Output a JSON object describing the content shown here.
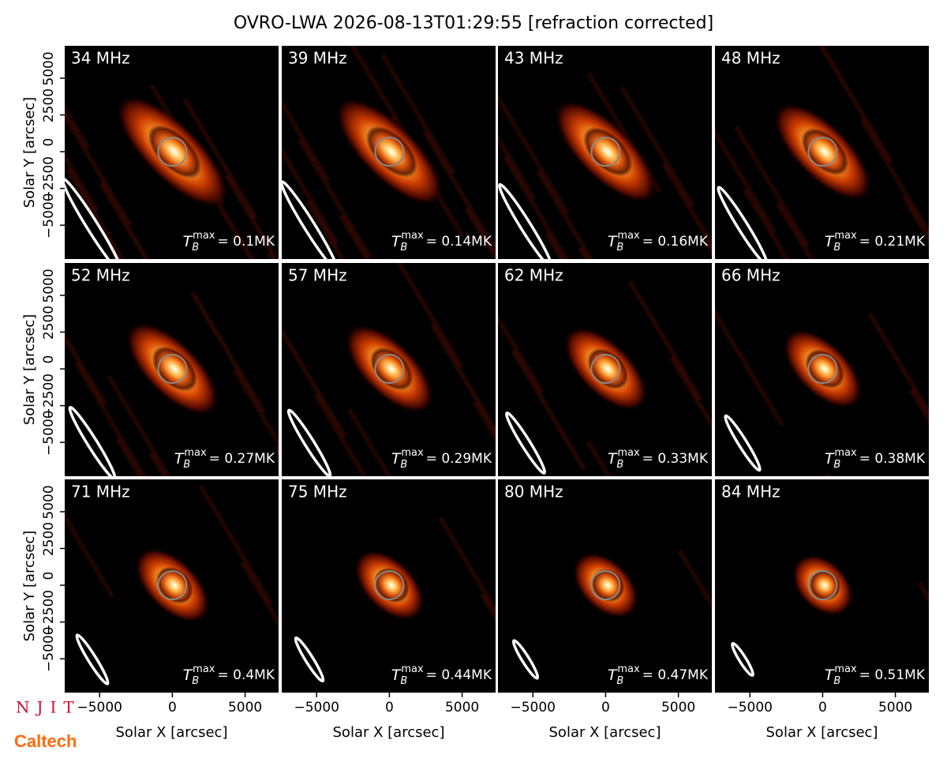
{
  "figure": {
    "title": "OVRO-LWA 2026-08-13T01:29:55 [refraction corrected]",
    "xlabel": "Solar X [arcsec]",
    "ylabel": "Solar Y [arcsec]",
    "xlim": [
      -7400,
      7300
    ],
    "ylim": [
      -7300,
      7200
    ],
    "xticks": [
      {
        "value": -5000,
        "label": "−5000"
      },
      0,
      5000
    ],
    "yticks": [
      {
        "value": -5000,
        "label": "−5000"
      },
      {
        "value": -2500,
        "label": "−2500"
      },
      0,
      2500,
      5000
    ],
    "logos": {
      "njit": "NJIT",
      "caltech": "Caltech"
    }
  },
  "chart_data": [
    {
      "type": "image",
      "title": "34 MHz",
      "tb_symbol": "T",
      "tb_sub": "B",
      "tb_sup": "max",
      "tb_text": "= 0.1MK"
    },
    {
      "type": "image",
      "title": "39 MHz",
      "tb_symbol": "T",
      "tb_sub": "B",
      "tb_sup": "max",
      "tb_text": "= 0.14MK"
    },
    {
      "type": "image",
      "title": "43 MHz",
      "tb_symbol": "T",
      "tb_sub": "B",
      "tb_sup": "max",
      "tb_text": "= 0.16MK"
    },
    {
      "type": "image",
      "title": "48 MHz",
      "tb_symbol": "T",
      "tb_sub": "B",
      "tb_sup": "max",
      "tb_text": "= 0.21MK"
    },
    {
      "type": "image",
      "title": "52 MHz",
      "tb_symbol": "T",
      "tb_sub": "B",
      "tb_sup": "max",
      "tb_text": "= 0.27MK"
    },
    {
      "type": "image",
      "title": "57 MHz",
      "tb_symbol": "T",
      "tb_sub": "B",
      "tb_sup": "max",
      "tb_text": "= 0.29MK"
    },
    {
      "type": "image",
      "title": "62 MHz",
      "tb_symbol": "T",
      "tb_sub": "B",
      "tb_sup": "max",
      "tb_text": "= 0.33MK"
    },
    {
      "type": "image",
      "title": "66 MHz",
      "tb_symbol": "T",
      "tb_sub": "B",
      "tb_sup": "max",
      "tb_text": "= 0.38MK"
    },
    {
      "type": "image",
      "title": "71 MHz",
      "tb_symbol": "T",
      "tb_sub": "B",
      "tb_sup": "max",
      "tb_text": "= 0.4MK"
    },
    {
      "type": "image",
      "title": "75 MHz",
      "tb_symbol": "T",
      "tb_sub": "B",
      "tb_sup": "max",
      "tb_text": "= 0.44MK"
    },
    {
      "type": "image",
      "title": "80 MHz",
      "tb_symbol": "T",
      "tb_sub": "B",
      "tb_sup": "max",
      "tb_text": "= 0.47MK"
    },
    {
      "type": "image",
      "title": "84 MHz",
      "tb_symbol": "T",
      "tb_sub": "B",
      "tb_sup": "max",
      "tb_text": "= 0.51MK"
    }
  ]
}
